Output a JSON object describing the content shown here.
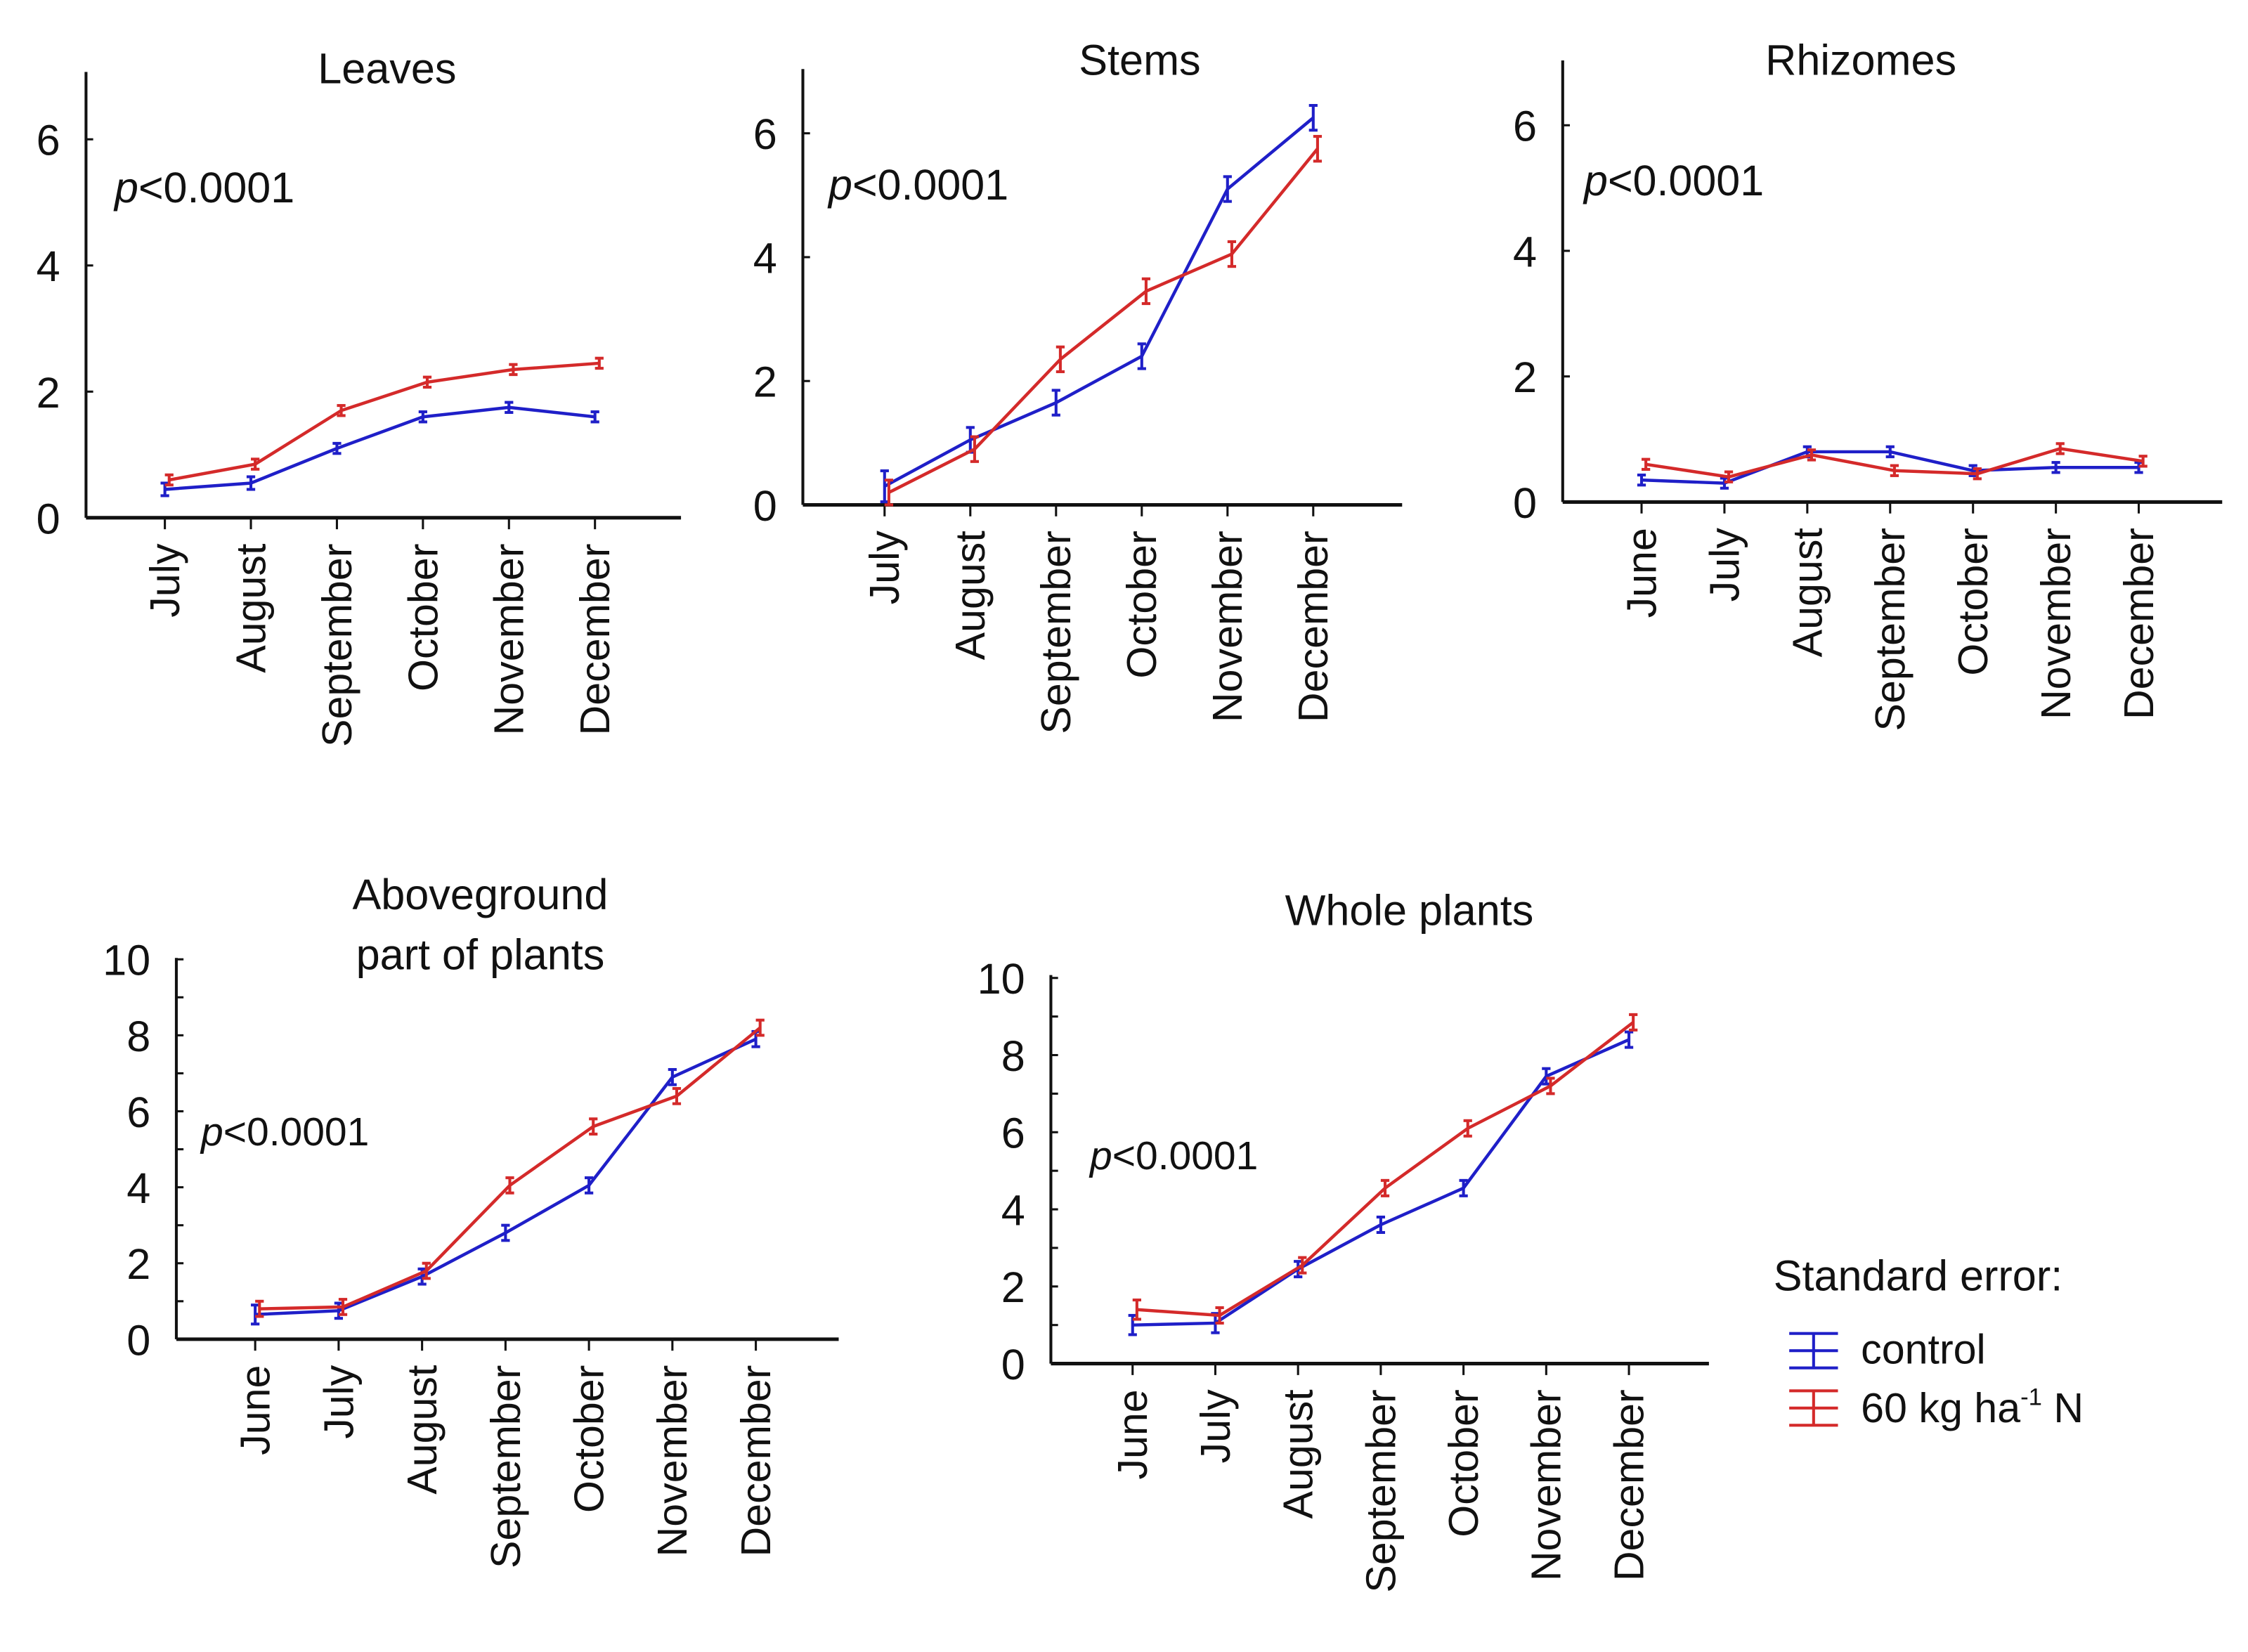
{
  "colors": {
    "control": "#1f1fc8",
    "nitrogen": "#d42a2a",
    "axis": "#111111"
  },
  "legend": {
    "title": "Standard error:",
    "control_label": "control",
    "nitrogen_label_main": "60 kg ha",
    "nitrogen_label_sup": "-1",
    "nitrogen_label_end": " N"
  },
  "chart_data": [
    {
      "type": "line",
      "title": "Leaves",
      "annotation": "p<0.0001",
      "categories": [
        "July",
        "August",
        "September",
        "October",
        "November",
        "December"
      ],
      "ylim": [
        0,
        7
      ],
      "yticks": [
        0,
        2,
        4,
        6
      ],
      "series": [
        {
          "name": "control",
          "values": [
            0.45,
            0.55,
            1.1,
            1.6,
            1.75,
            1.6
          ],
          "se": [
            0.1,
            0.1,
            0.08,
            0.08,
            0.08,
            0.08
          ]
        },
        {
          "name": "60 kg ha-1 N",
          "values": [
            0.6,
            0.85,
            1.7,
            2.15,
            2.35,
            2.45
          ],
          "se": [
            0.08,
            0.08,
            0.08,
            0.08,
            0.08,
            0.08
          ]
        }
      ]
    },
    {
      "type": "line",
      "title": "Stems",
      "annotation": "p<0.0001",
      "categories": [
        "July",
        "August",
        "September",
        "October",
        "November",
        "December"
      ],
      "ylim": [
        0,
        7
      ],
      "yticks": [
        0,
        2,
        4,
        6
      ],
      "series": [
        {
          "name": "control",
          "values": [
            0.3,
            1.05,
            1.65,
            2.4,
            5.1,
            6.25
          ],
          "se": [
            0.25,
            0.2,
            0.2,
            0.2,
            0.2,
            0.2
          ]
        },
        {
          "name": "60 kg ha-1 N",
          "values": [
            0.2,
            0.9,
            2.35,
            3.45,
            4.05,
            5.75
          ],
          "se": [
            0.2,
            0.2,
            0.2,
            0.2,
            0.2,
            0.2
          ]
        }
      ]
    },
    {
      "type": "line",
      "title": "Rhizomes",
      "annotation": "p<0.0001",
      "categories": [
        "June",
        "July",
        "August",
        "September",
        "October",
        "November",
        "December"
      ],
      "ylim": [
        0,
        7
      ],
      "yticks": [
        0,
        2,
        4,
        6
      ],
      "series": [
        {
          "name": "control",
          "values": [
            0.35,
            0.3,
            0.8,
            0.8,
            0.5,
            0.55,
            0.55
          ],
          "se": [
            0.08,
            0.08,
            0.08,
            0.08,
            0.08,
            0.08,
            0.08
          ]
        },
        {
          "name": "60 kg ha-1 N",
          "values": [
            0.6,
            0.4,
            0.75,
            0.5,
            0.45,
            0.85,
            0.65
          ],
          "se": [
            0.08,
            0.08,
            0.08,
            0.08,
            0.08,
            0.08,
            0.08
          ]
        }
      ]
    },
    {
      "type": "line",
      "title": [
        "Aboveground",
        "part of plants"
      ],
      "annotation": "p<0.0001",
      "categories": [
        "June",
        "July",
        "August",
        "September",
        "October",
        "November",
        "December"
      ],
      "ylim": [
        0,
        10
      ],
      "yticks": [
        0,
        2,
        4,
        6,
        8,
        10
      ],
      "series": [
        {
          "name": "control",
          "values": [
            0.65,
            0.75,
            1.65,
            2.8,
            4.05,
            6.9,
            7.9
          ],
          "se": [
            0.25,
            0.2,
            0.2,
            0.2,
            0.2,
            0.2,
            0.2
          ]
        },
        {
          "name": "60 kg ha-1 N",
          "values": [
            0.8,
            0.85,
            1.8,
            4.05,
            5.6,
            6.4,
            8.2
          ],
          "se": [
            0.2,
            0.2,
            0.2,
            0.2,
            0.2,
            0.2,
            0.2
          ]
        }
      ]
    },
    {
      "type": "line",
      "title": "Whole plants",
      "annotation": "p<0.0001",
      "categories": [
        "June",
        "July",
        "August",
        "September",
        "October",
        "November",
        "December"
      ],
      "ylim": [
        0,
        10
      ],
      "yticks": [
        0,
        2,
        4,
        6,
        8,
        10
      ],
      "series": [
        {
          "name": "control",
          "values": [
            1.0,
            1.05,
            2.45,
            3.6,
            4.55,
            7.45,
            8.4
          ],
          "se": [
            0.25,
            0.25,
            0.2,
            0.2,
            0.2,
            0.2,
            0.2
          ]
        },
        {
          "name": "60 kg ha-1 N",
          "values": [
            1.4,
            1.25,
            2.55,
            4.55,
            6.1,
            7.2,
            8.85
          ],
          "se": [
            0.25,
            0.2,
            0.2,
            0.2,
            0.2,
            0.2,
            0.2
          ]
        }
      ]
    }
  ]
}
